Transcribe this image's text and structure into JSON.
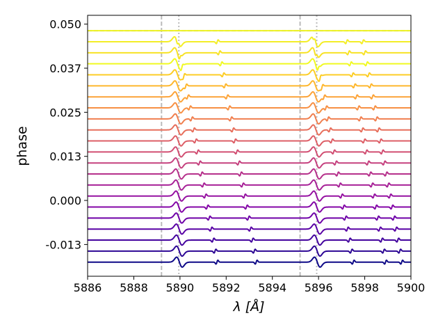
{
  "chart_data": {
    "type": "line",
    "xlabel": "λ [Å]",
    "ylabel": "phase",
    "xlim": [
      5886,
      5900
    ],
    "ylim": [
      -0.0215,
      0.0525
    ],
    "x_ticks": [
      5886,
      5888,
      5890,
      5892,
      5894,
      5896,
      5898,
      5900
    ],
    "x_tick_labels": [
      "5886",
      "5888",
      "5890",
      "5892",
      "5894",
      "5896",
      "5898",
      "5900"
    ],
    "y_ticks": [
      -0.0125,
      0.0,
      0.0125,
      0.025,
      0.0375,
      0.05
    ],
    "y_tick_labels": [
      "-0.013",
      "0.000",
      "0.013",
      "0.025",
      "0.037",
      "0.050"
    ],
    "colormap": "plasma",
    "series_offset_spacing": 0.003125,
    "series_phases": [
      -0.0175,
      -0.014375,
      -0.01125,
      -0.008125,
      -0.005,
      -0.001875,
      0.00125,
      0.004375,
      0.0075,
      0.010625,
      0.01375,
      0.016875,
      0.02,
      0.023125,
      0.02625,
      0.029375,
      0.0325,
      0.035625,
      0.03875,
      0.041875,
      0.045,
      0.048125
    ],
    "series_colors": [
      "#0d0887",
      "#2c0594",
      "#43039e",
      "#5901a5",
      "#6e00a8",
      "#8305a7",
      "#9511a1",
      "#a72197",
      "#b6308b",
      "#c5407e",
      "#d14e72",
      "#dd5e66",
      "#e76e5b",
      "#f07f4f",
      "#f79044",
      "#fca338",
      "#feb72d",
      "#fccd25",
      "#f0f921",
      "#f7e225",
      "#f3ee27",
      "#eef321"
    ],
    "planet_line_rest": [
      5889.95,
      5895.92
    ],
    "planet_line_shift_per_phase": -46.0,
    "weak_lines": [
      5891.6,
      5893.3,
      5897.5,
      5898.9,
      5899.6
    ],
    "reference_lines_dashed": [
      5889.2,
      5895.2
    ],
    "reference_lines_dotted": [
      5889.95,
      5895.92
    ],
    "reference_hline": 0.04813,
    "reference_line_color": "#bbbbbb"
  }
}
